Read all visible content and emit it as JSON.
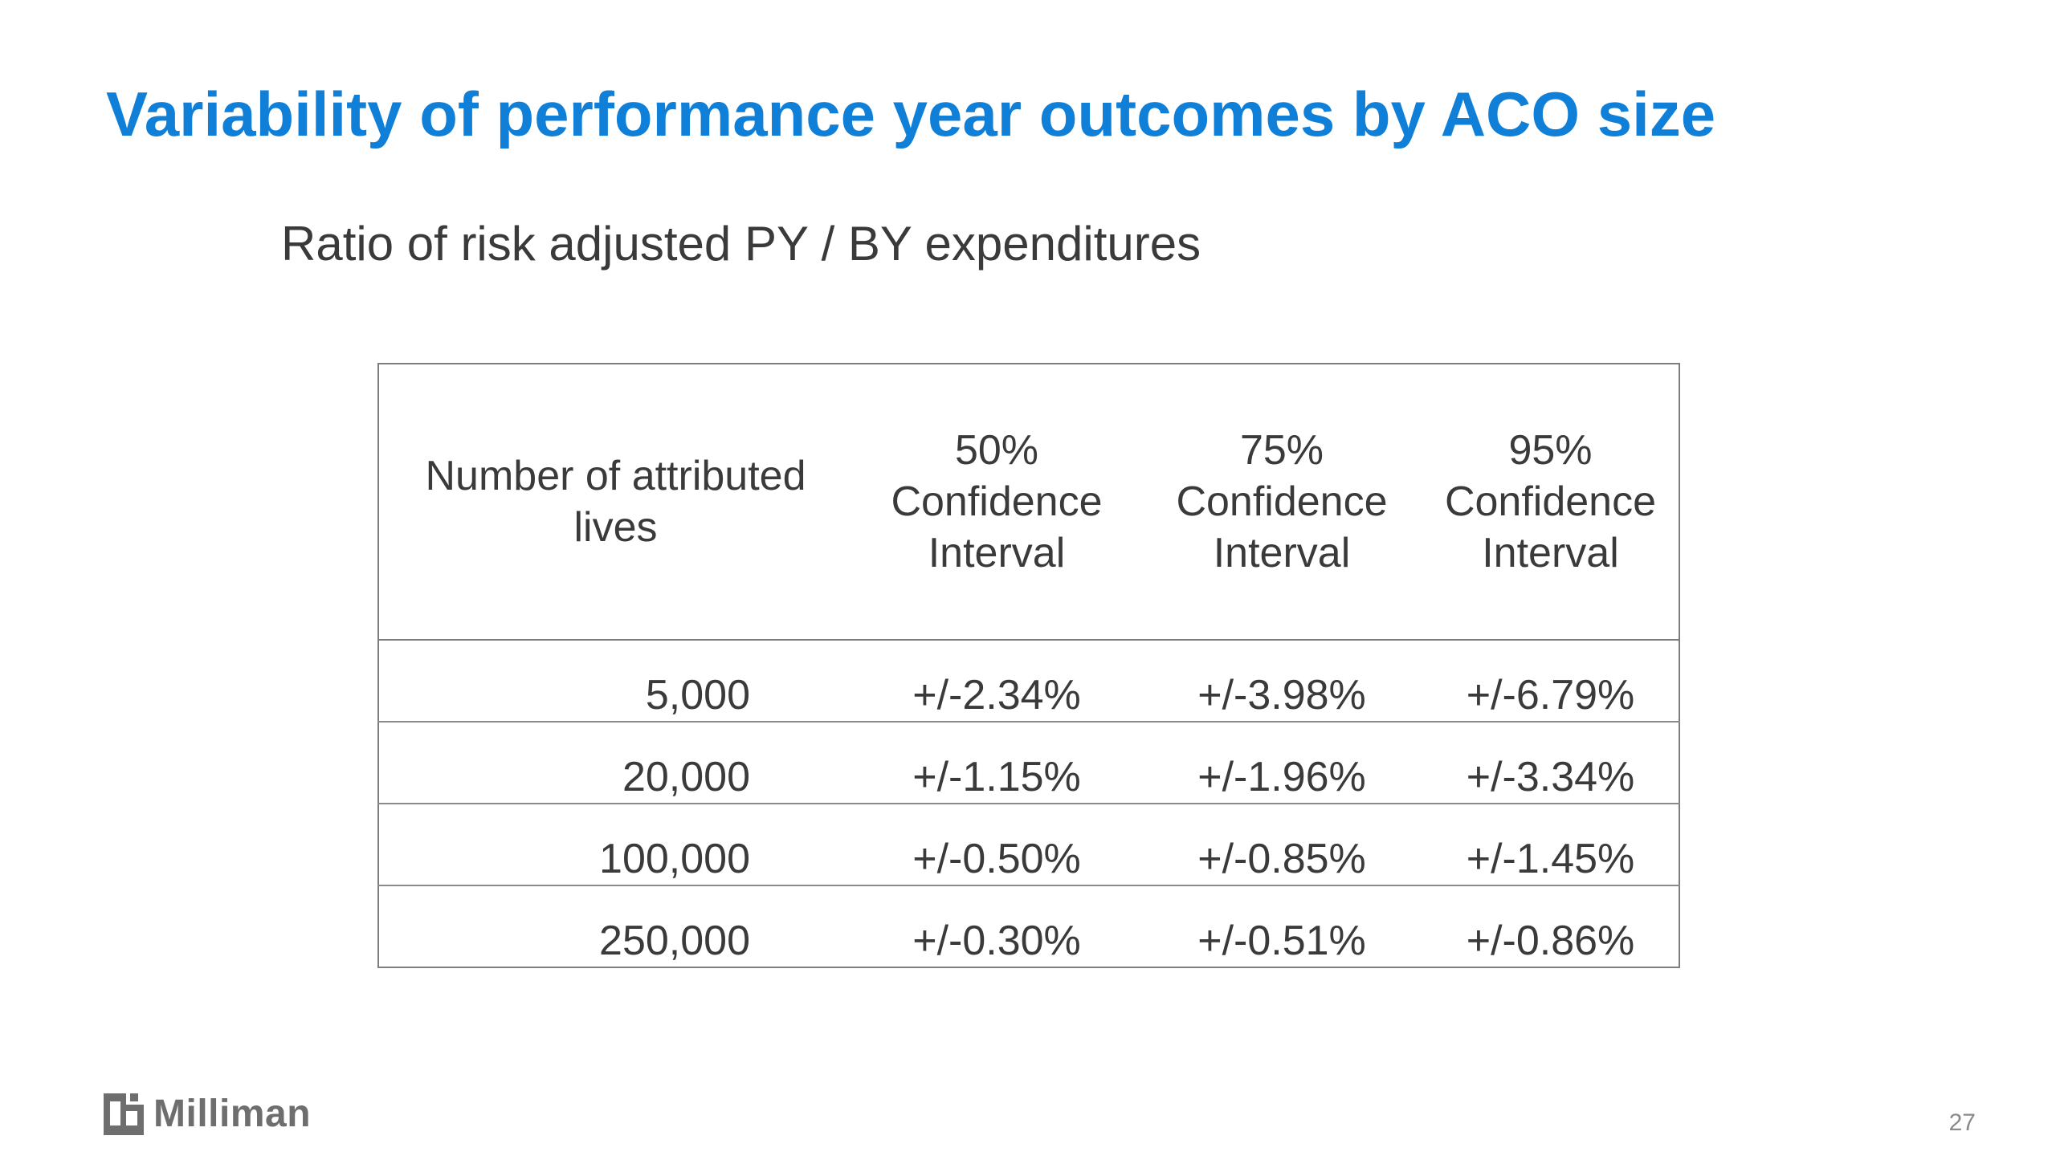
{
  "slide": {
    "title": "Variability of performance year outcomes by ACO size",
    "subtitle": "Ratio of risk adjusted PY / BY expenditures",
    "page_number": "27"
  },
  "table": {
    "headers": {
      "lives": [
        "Number of attributed",
        "lives"
      ],
      "ci50": [
        "50%",
        "Confidence",
        "Interval"
      ],
      "ci75": [
        "75%",
        "Confidence",
        "Interval"
      ],
      "ci95": [
        "95%",
        "Confidence",
        "Interval"
      ]
    },
    "rows": [
      {
        "lives": "5,000",
        "ci50": "+/-2.34%",
        "ci75": "+/-3.98%",
        "ci95": "+/-6.79%"
      },
      {
        "lives": "20,000",
        "ci50": "+/-1.15%",
        "ci75": "+/-1.96%",
        "ci95": "+/-3.34%"
      },
      {
        "lives": "100,000",
        "ci50": "+/-0.50%",
        "ci75": "+/-0.85%",
        "ci95": "+/-1.45%"
      },
      {
        "lives": "250,000",
        "ci50": "+/-0.30%",
        "ci75": "+/-0.51%",
        "ci95": "+/-0.86%"
      }
    ]
  },
  "footer": {
    "logo_text": "Milliman",
    "logo_icon": "milliman-logo-icon"
  },
  "colors": {
    "title": "#0f7fd8",
    "body_text": "#3a3a3a",
    "border": "#7d7d7d",
    "logo": "#6e6e6e"
  }
}
